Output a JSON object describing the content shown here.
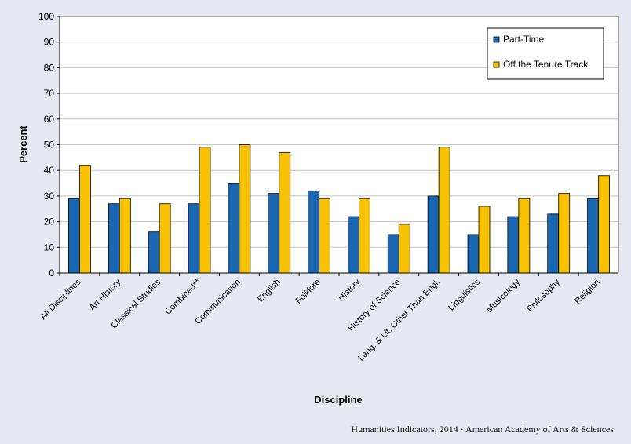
{
  "chart_data": {
    "type": "bar",
    "xlabel": "Discipline",
    "ylabel": "Percent",
    "ylim": [
      0,
      100
    ],
    "yticks": [
      0,
      10,
      20,
      30,
      40,
      50,
      60,
      70,
      80,
      90,
      100
    ],
    "grid": true,
    "legend_position": "top-right",
    "categories": [
      "All Disciplines",
      "Art History",
      "Classical Studies",
      "Combined**",
      "Communication",
      "English",
      "Folklore",
      "History",
      "History of Science",
      "Lang. & Lit. Other Than Engl.",
      "Linguistics",
      "Musicology",
      "Philosophy",
      "Religion"
    ],
    "series": [
      {
        "name": "Part-Time",
        "color": "#1a66b0",
        "values": [
          29,
          27,
          16,
          27,
          35,
          31,
          32,
          22,
          15,
          30,
          15,
          22,
          23,
          29
        ]
      },
      {
        "name": "Off the Tenure Track",
        "color": "#f8c200",
        "values": [
          42,
          29,
          27,
          49,
          50,
          47,
          29,
          29,
          19,
          49,
          26,
          29,
          31,
          38
        ]
      }
    ]
  },
  "footer": "Humanities Indicators, 2014 · American Academy of Arts & Sciences"
}
